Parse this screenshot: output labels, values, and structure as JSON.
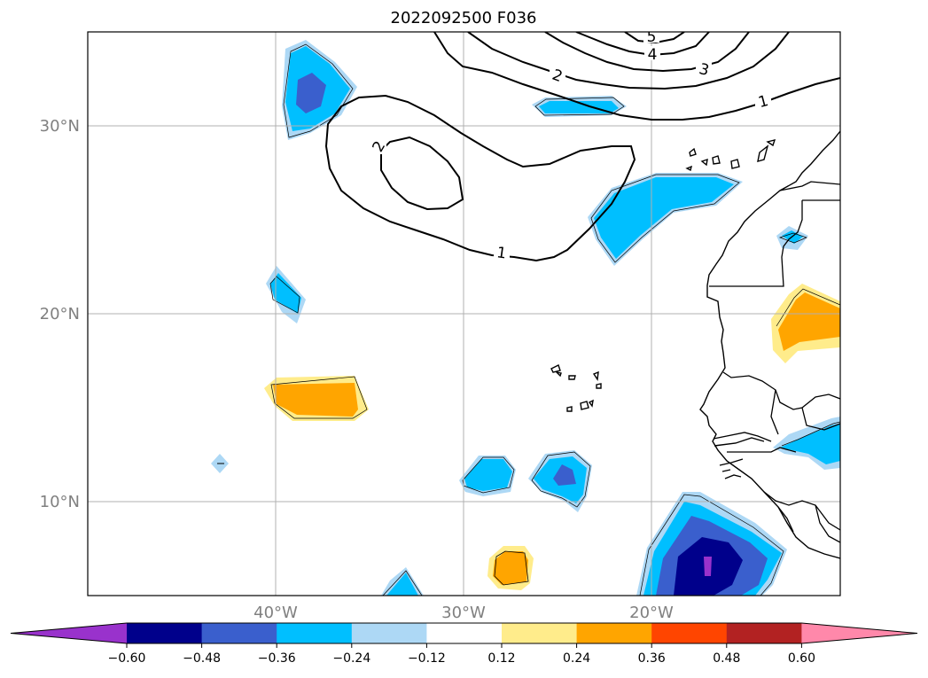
{
  "title": "2022092500 F036",
  "lat_labels": [
    "30°N",
    "20°N",
    "10°N"
  ],
  "lon_labels": [
    "40°W",
    "30°W",
    "20°W"
  ],
  "contour_labels": [
    "5",
    "4",
    "3",
    "2",
    "1",
    "2",
    "1"
  ],
  "colorbar": {
    "ticks": [
      "−0.60",
      "−0.48",
      "−0.36",
      "−0.24",
      "−0.12",
      "0.12",
      "0.24",
      "0.36",
      "0.48",
      "0.60"
    ],
    "colors": [
      "#9932cc",
      "#00008b",
      "#3a5fcd",
      "#00bfff",
      "#add8f5",
      "#ffffff",
      "#ffec8b",
      "#ffa500",
      "#ff4500",
      "#b22222",
      "#ff88aa"
    ]
  },
  "colors": {
    "grid": "#b0b0b0",
    "contour": "#000000",
    "coast": "#000000"
  }
}
